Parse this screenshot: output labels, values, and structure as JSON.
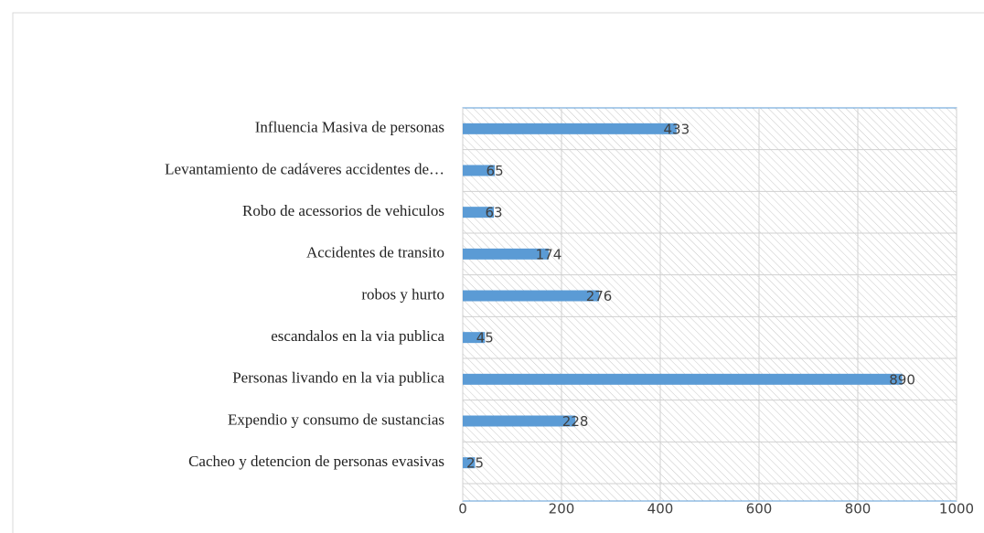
{
  "chart_data": {
    "type": "bar",
    "orientation": "horizontal",
    "categories": [
      "Influencia Masiva de personas",
      "Levantamiento de cadáveres accidentes de…",
      "Robo de acessorios de vehiculos",
      "Accidentes de transito",
      "robos y hurto",
      "escandalos en la via publica",
      "Personas livando en la via publica",
      "Expendio y consumo de sustancias",
      "Cacheo y detencion de personas evasivas"
    ],
    "values": [
      433,
      65,
      63,
      174,
      276,
      45,
      890,
      228,
      25
    ],
    "color": "#5b9bd5",
    "xlim": [
      0,
      1000
    ],
    "xticks": [
      0,
      200,
      400,
      600,
      800,
      1000
    ],
    "grid": true
  }
}
